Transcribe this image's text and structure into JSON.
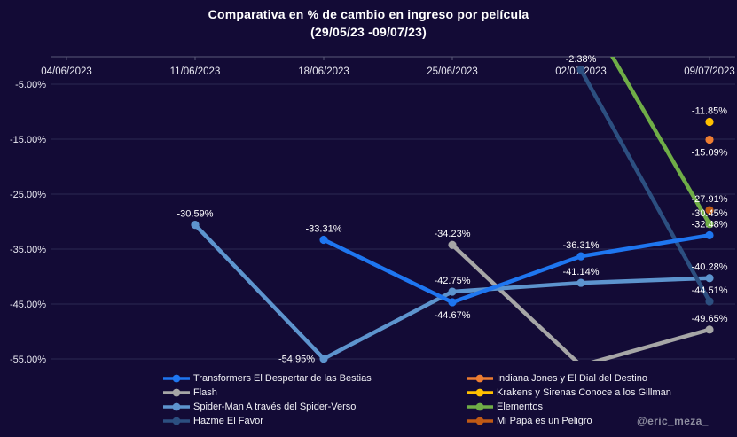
{
  "watermark": "@eric_meza_",
  "theme": {
    "background": "#130B36",
    "gridline": "#2B2852",
    "axis_line": "#5A5878",
    "tick_text": "#E9E9F2",
    "data_label": "#FFFFFF",
    "title_color": "#FFFFFF"
  },
  "chart_data": {
    "type": "line",
    "title": "Comparativa en % de cambio en ingreso por película",
    "subtitle": "(29/05/23  -09/07/23)",
    "xlabel": "",
    "ylabel": "",
    "grid": true,
    "legend_position": "bottom",
    "ylim": [
      -57.5,
      0
    ],
    "x_categories": [
      "04/06/2023",
      "11/06/2023",
      "18/06/2023",
      "25/06/2023",
      "02/07/2023",
      "09/07/2023"
    ],
    "y_ticks": [
      {
        "value": -5,
        "label": "-5.00%"
      },
      {
        "value": -15,
        "label": "-15.00%"
      },
      {
        "value": -25,
        "label": "-25.00%"
      },
      {
        "value": -35,
        "label": "-35.00%"
      },
      {
        "value": -45,
        "label": "-45.00%"
      },
      {
        "value": -55,
        "label": "-55.00%"
      }
    ],
    "series": [
      {
        "name": "Transformers El Despertar de las Bestias",
        "color": "#1E76F0",
        "points": [
          {
            "x": 2,
            "v": -33.31,
            "label": "-33.31%",
            "lpos": "above"
          },
          {
            "x": 3,
            "v": -44.67,
            "label": "-44.67%",
            "lpos": "below"
          },
          {
            "x": 4,
            "v": -36.31,
            "label": "-36.31%",
            "lpos": "above"
          },
          {
            "x": 5,
            "v": -32.48,
            "label": "-32.48%",
            "lpos": "above"
          }
        ]
      },
      {
        "name": "Indiana Jones y El Dial del Destino",
        "color": "#ED7D31",
        "points": [
          {
            "x": 5,
            "v": -15.09,
            "label": "-15.09%",
            "lpos": "below"
          }
        ]
      },
      {
        "name": "Flash",
        "color": "#A6A6A6",
        "points": [
          {
            "x": 3,
            "v": -34.23,
            "label": "-34.23%",
            "lpos": "above"
          },
          {
            "x": 4,
            "v": -56.2,
            "label": null,
            "hidden": true,
            "note": "clipped below plot area, no visible label"
          },
          {
            "x": 5,
            "v": -49.65,
            "label": "-49.65%",
            "lpos": "above"
          }
        ]
      },
      {
        "name": "Krakens y Sirenas Conoce a los Gillman",
        "color": "#FFC000",
        "points": [
          {
            "x": 5,
            "v": -11.85,
            "label": "-11.85%",
            "lpos": "above"
          }
        ]
      },
      {
        "name": "Spider-Man A través del Spider-Verso",
        "color": "#5D94CE",
        "points": [
          {
            "x": 1,
            "v": -30.59,
            "label": "-30.59%",
            "lpos": "above"
          },
          {
            "x": 2,
            "v": -54.95,
            "label": "-54.95%",
            "lpos": "left"
          },
          {
            "x": 3,
            "v": -42.75,
            "label": "-42.75%",
            "lpos": "above"
          },
          {
            "x": 4,
            "v": -41.14,
            "label": "-41.14%",
            "lpos": "above"
          },
          {
            "x": 5,
            "v": -40.28,
            "label": "-40.28%",
            "lpos": "above"
          }
        ]
      },
      {
        "name": "Elementos",
        "color": "#6FAD47",
        "points": [
          {
            "x": 4,
            "v": 9.9,
            "label": null,
            "hidden": true,
            "note": "clipped above 0% axis, no visible label"
          },
          {
            "x": 5,
            "v": -30.45,
            "label": "-30.45%",
            "lpos": "above"
          }
        ]
      },
      {
        "name": "Hazme El Favor",
        "color": "#2C4F80",
        "points": [
          {
            "x": 4,
            "v": -2.38,
            "label": "-2.38%",
            "lpos": "above"
          },
          {
            "x": 5,
            "v": -44.51,
            "label": "-44.51%",
            "lpos": "above"
          }
        ]
      },
      {
        "name": "Mi Papá es un Peligro",
        "color": "#C05A15",
        "points": [
          {
            "x": 5,
            "v": -27.91,
            "label": "-27.91%",
            "lpos": "above"
          }
        ]
      }
    ],
    "draw_order": [
      2,
      4,
      6,
      5,
      0,
      1,
      3,
      7
    ]
  },
  "legend": {
    "columns": [
      [
        "Transformers El Despertar de las Bestias",
        "Flash",
        "Spider-Man A través del Spider-Verso",
        "Hazme El Favor"
      ],
      [
        "Indiana Jones y El Dial del Destino",
        "Krakens y Sirenas Conoce a los Gillman",
        "Elementos",
        "Mi Papá es un Peligro"
      ]
    ]
  }
}
